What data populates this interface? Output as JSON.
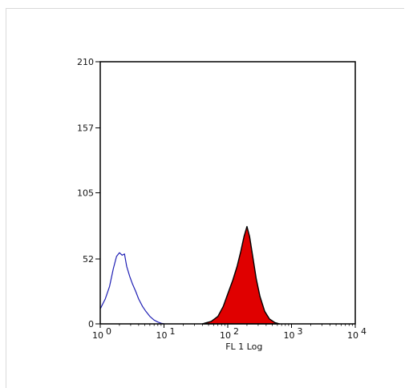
{
  "chart_data": {
    "type": "area",
    "title": "",
    "xlabel": "FL 1 Log",
    "ylabel": "",
    "x_scale": "log",
    "xlim": [
      1,
      10000
    ],
    "ylim": [
      0,
      210
    ],
    "y_ticks": [
      0,
      52,
      105,
      157,
      210
    ],
    "y_tick_labels": [
      "0",
      "52",
      "105",
      "157",
      "210"
    ],
    "x_ticks": [
      1,
      10,
      100,
      1000,
      10000
    ],
    "x_tick_bases": [
      "10",
      "10",
      "10",
      "10",
      "10"
    ],
    "x_tick_exponents": [
      "0",
      "1",
      "2",
      "3",
      "4"
    ],
    "grid": false,
    "legend": "none",
    "series": [
      {
        "style": "outline",
        "color": "#1f1fb4",
        "x": [
          1.0,
          1.2,
          1.4,
          1.6,
          1.8,
          2.0,
          2.2,
          2.4,
          2.6,
          2.9,
          3.2,
          3.6,
          4.0,
          4.6,
          5.2,
          6.0,
          7.0,
          8.0,
          9.0,
          10.0
        ],
        "y": [
          12,
          20,
          30,
          44,
          54,
          57,
          55,
          56,
          46,
          38,
          32,
          26,
          20,
          14,
          10,
          6,
          3,
          1.5,
          0.5,
          0
        ]
      },
      {
        "style": "filled",
        "color": "#e00000",
        "x": [
          40,
          55,
          70,
          85,
          100,
          120,
          140,
          160,
          180,
          200,
          220,
          250,
          280,
          320,
          380,
          450,
          550,
          650
        ],
        "y": [
          0,
          2,
          6,
          14,
          24,
          35,
          46,
          58,
          70,
          78,
          70,
          52,
          36,
          22,
          10,
          4,
          1,
          0
        ]
      }
    ]
  }
}
